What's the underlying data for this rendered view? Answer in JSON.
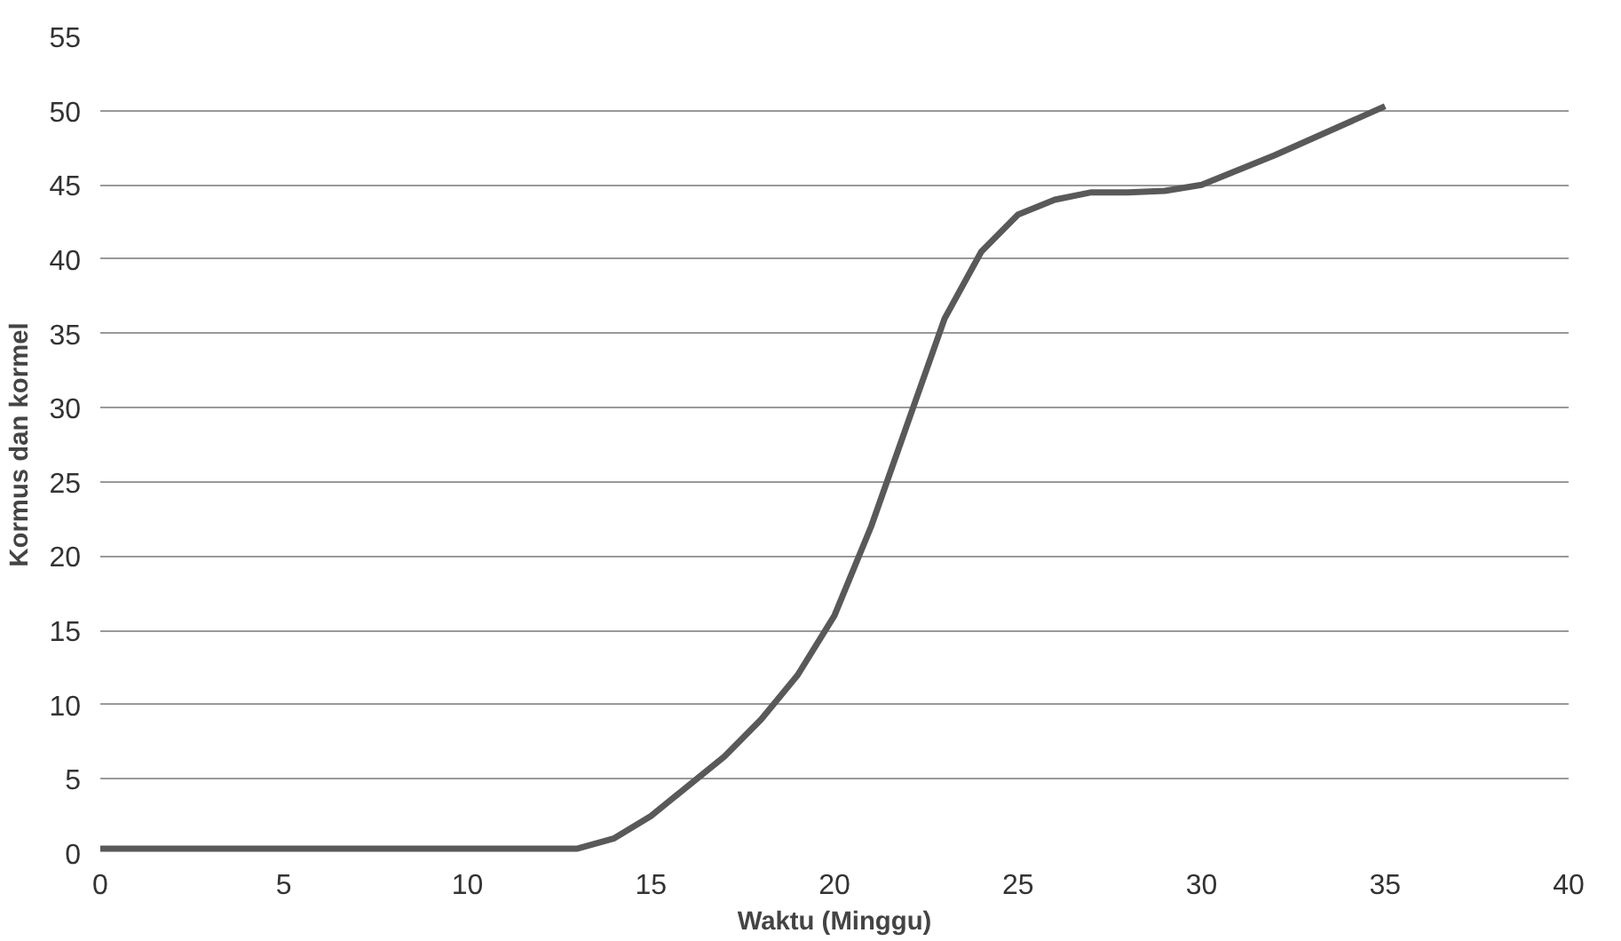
{
  "chart_data": {
    "type": "line",
    "xlabel": "Waktu (Minggu)",
    "ylabel": "Kormus dan kormel",
    "x": [
      0,
      5,
      10,
      13,
      14,
      15,
      16,
      17,
      18,
      19,
      20,
      21,
      22,
      23,
      24,
      25,
      26,
      27,
      28,
      29,
      30,
      32,
      35
    ],
    "series": [
      {
        "color": "#595959",
        "values": [
          0.3,
          0.3,
          0.3,
          0.3,
          1,
          2.5,
          4.5,
          6.5,
          9,
          12,
          16,
          22,
          29,
          36,
          40.5,
          43,
          44,
          44.5,
          44.5,
          44.6,
          45,
          47,
          50.3
        ]
      }
    ],
    "xlim": [
      0,
      40
    ],
    "xticks": [
      0,
      5,
      10,
      15,
      20,
      25,
      30,
      35,
      40
    ],
    "ylim": [
      0,
      55
    ],
    "yticks": [
      0,
      5,
      10,
      15,
      20,
      25,
      30,
      35,
      40,
      45,
      50,
      55
    ],
    "grid": "y",
    "marker": "none",
    "line_style": "solid"
  }
}
